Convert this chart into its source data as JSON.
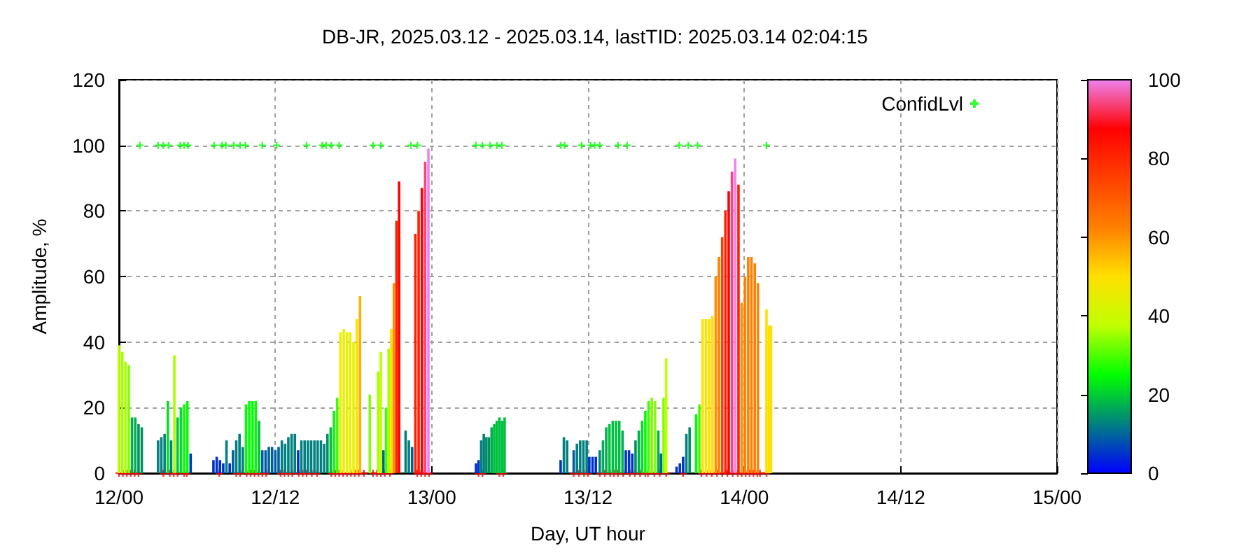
{
  "chart_data": {
    "type": "bar",
    "title": "DB-JR, 2025.03.12 - 2025.03.14, lastTID: 2025.03.14 02:04:15",
    "xlabel": "Day, UT hour",
    "ylabel": "Amplitude, %",
    "xlim": [
      "2025-03-12T00:00",
      "2025-03-15T00:00"
    ],
    "xticks": [
      {
        "value": "2025-03-12T00:00",
        "label": "12/00"
      },
      {
        "value": "2025-03-12T12:00",
        "label": "12/12"
      },
      {
        "value": "2025-03-13T00:00",
        "label": "13/00"
      },
      {
        "value": "2025-03-13T12:00",
        "label": "13/12"
      },
      {
        "value": "2025-03-14T00:00",
        "label": "14/00"
      },
      {
        "value": "2025-03-14T12:00",
        "label": "14/12"
      },
      {
        "value": "2025-03-15T00:00",
        "label": "15/00"
      }
    ],
    "ylim": [
      0,
      120
    ],
    "yticks": [
      0,
      20,
      40,
      60,
      80,
      100,
      120
    ],
    "clim": [
      0,
      100
    ],
    "cticks": [
      0,
      20,
      40,
      60,
      80,
      100
    ],
    "grid": true,
    "legend": "top right",
    "marker": "cross",
    "series": [
      {
        "x": [
          "2025-03-12T00:00",
          "2025-03-12T00:15",
          "2025-03-12T00:30",
          "2025-03-12T00:45",
          "2025-03-12T01:00",
          "2025-03-12T01:15",
          "2025-03-12T01:30",
          "2025-03-12T01:45",
          "2025-03-12T03:00",
          "2025-03-12T03:15",
          "2025-03-12T03:30",
          "2025-03-12T03:45",
          "2025-03-12T04:00",
          "2025-03-12T04:15",
          "2025-03-12T04:30",
          "2025-03-12T04:45",
          "2025-03-12T05:00",
          "2025-03-12T05:15",
          "2025-03-12T05:30",
          "2025-03-12T07:15",
          "2025-03-12T07:30",
          "2025-03-12T07:45",
          "2025-03-12T08:00",
          "2025-03-12T08:15",
          "2025-03-12T08:30",
          "2025-03-12T08:45",
          "2025-03-12T09:00",
          "2025-03-12T09:15",
          "2025-03-12T09:30",
          "2025-03-12T09:45",
          "2025-03-12T10:00",
          "2025-03-12T10:15",
          "2025-03-12T10:30",
          "2025-03-12T10:45",
          "2025-03-12T11:00",
          "2025-03-12T11:15",
          "2025-03-12T11:30",
          "2025-03-12T11:45",
          "2025-03-12T12:00",
          "2025-03-12T12:15",
          "2025-03-12T12:30",
          "2025-03-12T12:45",
          "2025-03-12T13:00",
          "2025-03-12T13:15",
          "2025-03-12T13:30",
          "2025-03-12T13:45",
          "2025-03-12T14:00",
          "2025-03-12T14:15",
          "2025-03-12T14:30",
          "2025-03-12T14:45",
          "2025-03-12T15:00",
          "2025-03-12T15:15",
          "2025-03-12T15:30",
          "2025-03-12T15:45",
          "2025-03-12T16:00",
          "2025-03-12T16:15",
          "2025-03-12T16:30",
          "2025-03-12T16:45",
          "2025-03-12T17:00",
          "2025-03-12T17:15",
          "2025-03-12T17:30",
          "2025-03-12T17:45",
          "2025-03-12T18:00",
          "2025-03-12T18:15",
          "2025-03-12T18:30",
          "2025-03-12T19:15",
          "2025-03-12T19:54",
          "2025-03-12T20:06",
          "2025-03-12T20:18",
          "2025-03-12T20:30",
          "2025-03-12T20:42",
          "2025-03-12T20:54",
          "2025-03-12T21:06",
          "2025-03-12T21:18",
          "2025-03-12T21:30",
          "2025-03-12T22:00",
          "2025-03-12T22:15",
          "2025-03-12T22:30",
          "2025-03-12T22:45",
          "2025-03-12T23:00",
          "2025-03-12T23:15",
          "2025-03-12T23:30",
          "2025-03-12T23:45",
          "2025-03-13T03:24",
          "2025-03-13T03:36",
          "2025-03-13T03:48",
          "2025-03-13T04:00",
          "2025-03-13T04:12",
          "2025-03-13T04:24",
          "2025-03-13T04:36",
          "2025-03-13T04:48",
          "2025-03-13T05:00",
          "2025-03-13T05:12",
          "2025-03-13T05:24",
          "2025-03-13T05:36",
          "2025-03-13T09:54",
          "2025-03-13T10:09",
          "2025-03-13T10:24",
          "2025-03-13T10:54",
          "2025-03-13T11:09",
          "2025-03-13T11:24",
          "2025-03-13T11:39",
          "2025-03-13T11:54",
          "2025-03-13T12:06",
          "2025-03-13T12:21",
          "2025-03-13T12:36",
          "2025-03-13T12:54",
          "2025-03-13T13:09",
          "2025-03-13T13:24",
          "2025-03-13T13:39",
          "2025-03-13T13:54",
          "2025-03-13T14:09",
          "2025-03-13T14:24",
          "2025-03-13T14:39",
          "2025-03-13T14:54",
          "2025-03-13T15:09",
          "2025-03-13T15:24",
          "2025-03-13T15:39",
          "2025-03-13T15:54",
          "2025-03-13T16:09",
          "2025-03-13T16:24",
          "2025-03-13T16:39",
          "2025-03-13T16:54",
          "2025-03-13T17:09",
          "2025-03-13T17:24",
          "2025-03-13T17:36",
          "2025-03-13T17:48",
          "2025-03-13T18:00",
          "2025-03-13T18:48",
          "2025-03-13T19:03",
          "2025-03-13T19:18",
          "2025-03-13T19:33",
          "2025-03-13T19:48",
          "2025-03-13T20:18",
          "2025-03-13T20:33",
          "2025-03-13T20:48",
          "2025-03-13T21:03",
          "2025-03-13T21:18",
          "2025-03-13T21:33",
          "2025-03-13T21:48",
          "2025-03-13T22:03",
          "2025-03-13T22:18",
          "2025-03-13T22:33",
          "2025-03-13T22:48",
          "2025-03-13T23:03",
          "2025-03-13T23:18",
          "2025-03-13T23:33",
          "2025-03-13T23:48",
          "2025-03-14T00:03",
          "2025-03-14T00:18",
          "2025-03-14T00:33",
          "2025-03-14T00:48",
          "2025-03-14T01:03",
          "2025-03-14T01:42",
          "2025-03-14T01:54",
          "2025-03-14T02:03"
        ],
        "values": [
          39,
          37,
          34,
          33,
          17,
          17,
          15,
          14,
          10,
          11,
          12,
          22,
          10,
          36,
          17,
          20,
          21,
          22,
          6,
          4,
          5,
          4,
          3,
          10,
          3,
          7,
          10,
          12,
          8,
          21,
          22,
          22,
          22,
          16,
          7,
          7,
          8,
          8,
          7,
          8,
          10,
          9,
          11,
          12,
          12,
          7,
          10,
          10,
          10,
          10,
          10,
          10,
          10,
          9,
          12,
          14,
          19,
          23,
          43,
          44,
          43,
          43,
          40,
          47,
          54,
          24,
          31,
          37,
          7,
          20,
          38,
          44,
          58,
          77,
          89,
          13,
          10,
          8,
          73,
          80,
          87,
          95,
          99,
          3,
          4,
          10,
          12,
          11,
          11,
          14,
          15,
          16,
          17,
          16,
          17,
          4,
          11,
          10,
          7,
          9,
          10,
          10,
          10,
          5,
          5,
          5,
          7,
          10,
          14,
          15,
          16,
          16,
          16,
          13,
          7,
          7,
          6,
          10,
          13,
          16,
          19,
          22,
          23,
          22,
          13,
          6,
          23,
          35,
          2,
          3,
          5,
          12,
          14,
          18,
          21,
          47,
          47,
          47,
          48,
          60,
          66,
          72,
          80,
          86,
          92,
          96,
          88,
          52,
          60,
          66,
          66,
          64,
          58,
          50,
          45,
          45
        ],
        "colors": [
          "#c0ff00",
          "#a8ff00",
          "#a8ff00",
          "#80ff00",
          "#00b050",
          "#00b050",
          "#009060",
          "#009060",
          "#008080",
          "#008080",
          "#008080",
          "#00e020",
          "#008080",
          "#a8ff00",
          "#00c040",
          "#00e020",
          "#00ff00",
          "#00ff00",
          "#0033cc",
          "#0033cc",
          "#0033cc",
          "#0033cc",
          "#0033cc",
          "#008080",
          "#0033cc",
          "#005fa0",
          "#008080",
          "#008080",
          "#008080",
          "#00ff00",
          "#00ff00",
          "#00ff00",
          "#00ff00",
          "#00c040",
          "#005fa0",
          "#005fa0",
          "#005fa0",
          "#005fa0",
          "#005fa0",
          "#005fa0",
          "#008080",
          "#008080",
          "#008080",
          "#008080",
          "#008080",
          "#0033cc",
          "#008080",
          "#008080",
          "#008080",
          "#008080",
          "#008080",
          "#008080",
          "#008080",
          "#008080",
          "#009060",
          "#00c040",
          "#00ff00",
          "#40ff00",
          "#e8f000",
          "#e8f000",
          "#e8f000",
          "#e8f000",
          "#e8f000",
          "#ffe000",
          "#ffb000",
          "#80ff00",
          "#a8ff00",
          "#c0ff00",
          "#005fa0",
          "#40ff00",
          "#a8ff00",
          "#ffe000",
          "#ff9000",
          "#ff2000",
          "#ff0000",
          "#008080",
          "#008080",
          "#005fa0",
          "#ff2000",
          "#ff2000",
          "#ff0000",
          "#ff4080",
          "#ee82ee",
          "#0033cc",
          "#0033cc",
          "#008080",
          "#008080",
          "#009060",
          "#009060",
          "#00b050",
          "#00c040",
          "#00c040",
          "#00c040",
          "#00c040",
          "#00c040",
          "#0033cc",
          "#008080",
          "#008080",
          "#005fa0",
          "#008080",
          "#008080",
          "#008080",
          "#008080",
          "#0033cc",
          "#0033cc",
          "#0033cc",
          "#008080",
          "#00b050",
          "#00b050",
          "#00c040",
          "#00c040",
          "#00c040",
          "#00c040",
          "#00b050",
          "#0033cc",
          "#0033cc",
          "#0033cc",
          "#009060",
          "#00b050",
          "#00e020",
          "#00ff00",
          "#40ff00",
          "#80ff00",
          "#80ff00",
          "#00b050",
          "#005fa0",
          "#80ff00",
          "#c0ff00",
          "#0033cc",
          "#0033cc",
          "#0033cc",
          "#008080",
          "#009060",
          "#00ff00",
          "#40ff00",
          "#ffe000",
          "#ffe000",
          "#ffe000",
          "#ffe000",
          "#ff9000",
          "#ff8000",
          "#ff4000",
          "#ff2000",
          "#ff0000",
          "#ff4080",
          "#ee82ee",
          "#ff2000",
          "#ff9000",
          "#ff8000",
          "#ff8000",
          "#ff8000",
          "#ff8000",
          "#ff8000",
          "#ffe000",
          "#ffe000",
          "#ffe000"
        ]
      },
      {
        "type": "scatter",
        "name": "ConfidLvl",
        "color": "#00ff00",
        "x": [
          "2025-03-12T01:36",
          "2025-03-12T03:00",
          "2025-03-12T03:24",
          "2025-03-12T03:48",
          "2025-03-12T04:42",
          "2025-03-12T05:00",
          "2025-03-12T05:18",
          "2025-03-12T07:18",
          "2025-03-12T07:54",
          "2025-03-12T08:12",
          "2025-03-12T08:48",
          "2025-03-12T09:18",
          "2025-03-12T09:42",
          "2025-03-12T11:00",
          "2025-03-12T12:06",
          "2025-03-12T14:24",
          "2025-03-12T15:36",
          "2025-03-12T15:54",
          "2025-03-12T16:18",
          "2025-03-12T16:54",
          "2025-03-12T19:30",
          "2025-03-12T20:06",
          "2025-03-12T22:24",
          "2025-03-12T22:54",
          "2025-03-13T03:24",
          "2025-03-13T03:54",
          "2025-03-13T04:30",
          "2025-03-13T05:00",
          "2025-03-13T05:24",
          "2025-03-13T09:54",
          "2025-03-13T10:12",
          "2025-03-13T11:30",
          "2025-03-13T12:12",
          "2025-03-13T12:30",
          "2025-03-13T12:54",
          "2025-03-13T14:18",
          "2025-03-13T15:00",
          "2025-03-13T19:00",
          "2025-03-13T19:42",
          "2025-03-13T20:24",
          "2025-03-14T01:42"
        ],
        "values": [
          100,
          100,
          100,
          100,
          100,
          100,
          100,
          100,
          100,
          100,
          100,
          100,
          100,
          100,
          100,
          100,
          100,
          100,
          100,
          100,
          100,
          100,
          100,
          100,
          100,
          100,
          100,
          100,
          100,
          100,
          100,
          100,
          100,
          100,
          100,
          100,
          100,
          100,
          100,
          100,
          100
        ]
      },
      {
        "type": "scatter",
        "color": "#ff0000",
        "x": [
          "2025-03-12T00:00",
          "2025-03-12T00:18",
          "2025-03-12T00:36",
          "2025-03-12T00:54",
          "2025-03-12T01:12",
          "2025-03-12T01:30",
          "2025-03-12T03:24",
          "2025-03-12T03:54",
          "2025-03-12T04:12",
          "2025-03-12T04:30",
          "2025-03-12T05:00",
          "2025-03-12T05:12",
          "2025-03-12T07:42",
          "2025-03-12T09:00",
          "2025-03-12T09:18",
          "2025-03-12T09:48",
          "2025-03-12T10:06",
          "2025-03-12T10:24",
          "2025-03-12T10:42",
          "2025-03-12T11:00",
          "2025-03-12T11:18",
          "2025-03-12T12:24",
          "2025-03-12T12:42",
          "2025-03-12T13:00",
          "2025-03-12T13:18",
          "2025-03-12T13:48",
          "2025-03-12T14:06",
          "2025-03-12T14:24",
          "2025-03-12T14:48",
          "2025-03-12T15:12",
          "2025-03-12T16:18",
          "2025-03-12T16:36",
          "2025-03-12T16:54",
          "2025-03-12T17:12",
          "2025-03-12T17:30",
          "2025-03-12T17:48",
          "2025-03-12T18:06",
          "2025-03-12T18:24",
          "2025-03-12T18:48",
          "2025-03-12T19:30",
          "2025-03-12T19:48",
          "2025-03-12T20:06",
          "2025-03-12T20:24",
          "2025-03-12T20:48",
          "2025-03-12T22:54",
          "2025-03-12T23:12",
          "2025-03-12T23:30",
          "2025-03-12T23:48",
          "2025-03-13T03:36",
          "2025-03-13T03:54",
          "2025-03-13T05:12",
          "2025-03-13T05:30",
          "2025-03-13T10:54",
          "2025-03-13T11:18",
          "2025-03-13T11:42",
          "2025-03-13T12:00",
          "2025-03-13T12:54",
          "2025-03-13T13:18",
          "2025-03-13T13:42",
          "2025-03-13T14:00",
          "2025-03-13T14:18",
          "2025-03-13T14:42",
          "2025-03-13T15:12",
          "2025-03-13T15:36",
          "2025-03-13T16:00",
          "2025-03-13T16:24",
          "2025-03-13T16:36",
          "2025-03-13T17:06",
          "2025-03-13T17:30",
          "2025-03-13T18:00",
          "2025-03-13T19:18",
          "2025-03-13T20:42",
          "2025-03-13T21:06",
          "2025-03-13T21:30",
          "2025-03-13T21:54",
          "2025-03-13T22:18",
          "2025-03-13T22:42",
          "2025-03-13T23:06",
          "2025-03-13T23:30",
          "2025-03-13T23:48",
          "2025-03-14T00:06",
          "2025-03-14T00:24",
          "2025-03-14T00:42",
          "2025-03-14T01:00",
          "2025-03-14T01:12",
          "2025-03-14T01:42"
        ],
        "values": [
          0,
          0,
          0,
          0,
          0,
          0,
          0,
          0,
          0,
          0,
          0,
          0,
          0,
          0,
          0,
          0,
          0,
          0,
          0,
          0,
          0,
          0,
          0,
          0,
          0,
          0,
          0,
          0,
          0,
          0,
          0,
          0,
          0,
          0,
          0,
          0,
          0,
          0,
          0,
          0,
          0,
          0,
          0,
          0,
          0,
          0,
          0,
          0,
          0,
          0,
          0,
          0,
          0,
          0,
          0,
          0,
          0,
          0,
          0,
          0,
          0,
          0,
          0,
          0,
          0,
          0,
          0,
          0,
          0,
          0,
          0,
          0,
          0,
          0,
          0,
          0,
          0,
          0,
          0,
          0,
          0,
          0,
          0,
          0,
          0,
          0
        ]
      }
    ]
  }
}
